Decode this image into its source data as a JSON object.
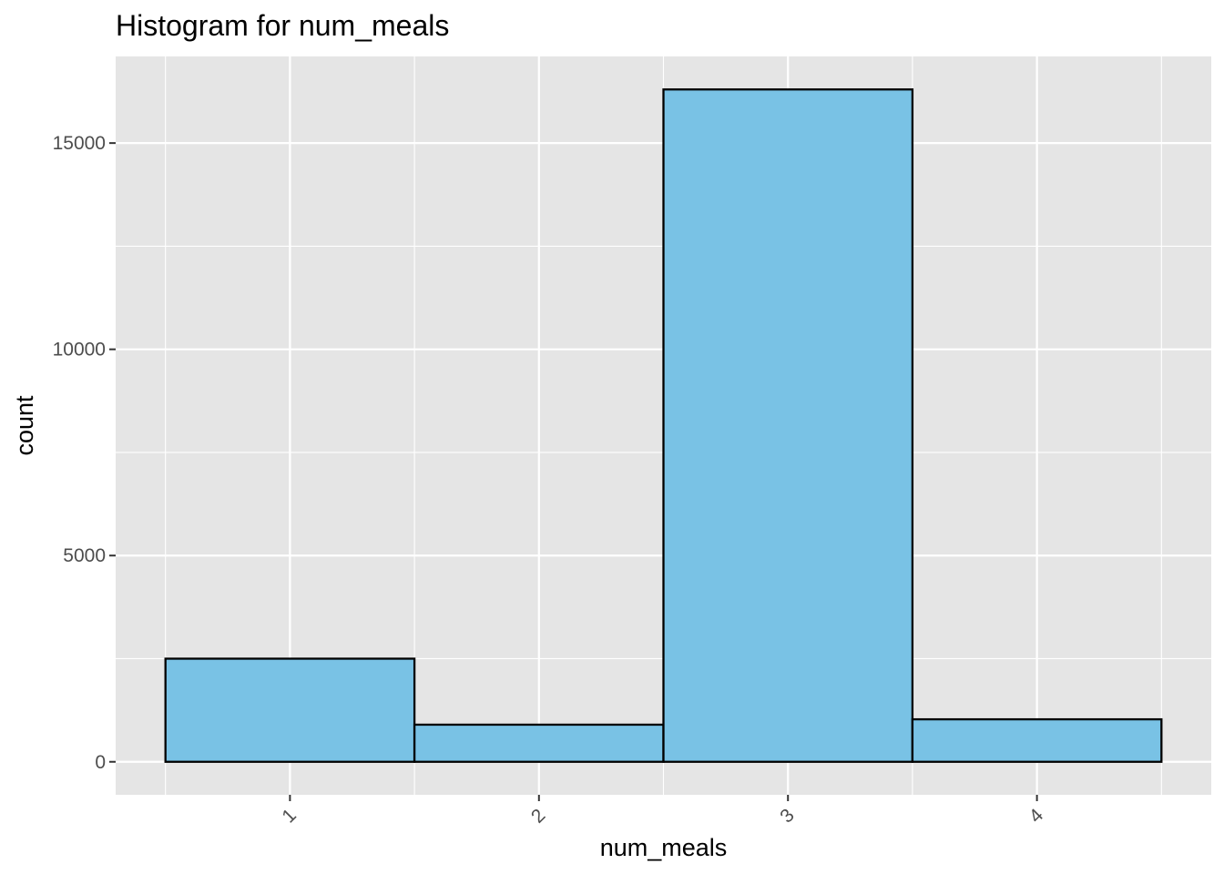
{
  "chart_data": {
    "type": "bar",
    "title": "Histogram for num_meals",
    "xlabel": "num_meals",
    "ylabel": "count",
    "categories": [
      "1",
      "2",
      "3",
      "4"
    ],
    "values": [
      2500,
      900,
      16300,
      1030
    ],
    "ylim": [
      -800,
      17100
    ],
    "xlim": [
      0.3,
      4.7
    ],
    "yticks": [
      0,
      5000,
      10000,
      15000
    ],
    "yticklabels": [
      "0",
      "5000",
      "10000",
      "15000"
    ],
    "bar_fill": "#79c2e5",
    "bar_stroke": "#000000",
    "panel_background": "#e5e5e5",
    "grid_color": "#ffffff",
    "grid": true,
    "x_tick_label_rotation_deg": -45
  }
}
